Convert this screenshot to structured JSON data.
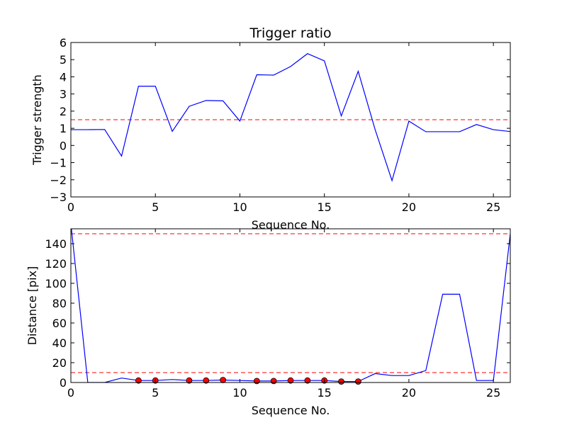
{
  "chart_data": [
    {
      "type": "line",
      "title": "Trigger ratio",
      "xlabel": "Sequence No.",
      "ylabel": "Trigger strength",
      "xlim": [
        0,
        26
      ],
      "ylim": [
        -3,
        6
      ],
      "xticks": [
        0,
        5,
        10,
        15,
        20,
        25
      ],
      "yticks": [
        -3,
        -2,
        -1,
        0,
        1,
        2,
        3,
        4,
        5,
        6
      ],
      "ytick_labels": [
        "−3",
        "−2",
        "−1",
        "0",
        "1",
        "2",
        "3",
        "4",
        "5",
        "6"
      ],
      "grid": false,
      "series": [
        {
          "color": "#0000ff",
          "x": [
            0,
            1,
            2,
            3,
            4,
            5,
            6,
            7,
            8,
            9,
            10,
            11,
            12,
            13,
            14,
            15,
            16,
            17,
            18,
            19,
            20,
            21,
            22,
            23,
            24,
            25,
            26
          ],
          "values": [
            0.92,
            0.92,
            0.93,
            -0.62,
            3.45,
            3.45,
            0.82,
            2.28,
            2.62,
            2.6,
            1.42,
            4.12,
            4.1,
            4.6,
            5.35,
            4.93,
            1.72,
            4.32,
            0.93,
            -2.05,
            1.42,
            0.8,
            0.8,
            0.8,
            1.22,
            0.92,
            0.81
          ]
        }
      ],
      "hlines": [
        {
          "y": 1.5,
          "color": "#ff0000",
          "style": "dashed"
        }
      ]
    },
    {
      "type": "line",
      "title": "",
      "xlabel": "Sequence No.",
      "ylabel": "Distance [pix]",
      "xlim": [
        0,
        26
      ],
      "ylim": [
        0,
        155
      ],
      "xticks": [
        0,
        5,
        10,
        15,
        20,
        25
      ],
      "yticks": [
        0,
        20,
        40,
        60,
        80,
        100,
        120,
        140
      ],
      "ytick_labels": [
        "0",
        "20",
        "40",
        "60",
        "80",
        "100",
        "120",
        "140"
      ],
      "grid": false,
      "series": [
        {
          "color": "#0000ff",
          "x": [
            0,
            1,
            2,
            3,
            4,
            5,
            6,
            7,
            8,
            9,
            10,
            11,
            12,
            13,
            14,
            15,
            16,
            17,
            18,
            19,
            20,
            21,
            22,
            23,
            24,
            25,
            26
          ],
          "values": [
            160,
            0,
            0,
            4.5,
            2,
            2,
            3,
            2,
            2,
            2.5,
            2,
            1.5,
            1.5,
            2,
            2,
            2,
            1,
            1,
            9,
            7,
            7,
            12,
            89,
            89,
            2,
            2,
            150
          ]
        }
      ],
      "markers": {
        "color": "#ff0000",
        "edge_color": "#000000",
        "x": [
          4,
          5,
          7,
          8,
          9,
          11,
          12,
          13,
          14,
          15,
          16,
          17
        ],
        "values": [
          2,
          2,
          2,
          2,
          2.5,
          1.5,
          1.5,
          2,
          2,
          2,
          1,
          1
        ]
      },
      "hlines": [
        {
          "y": 150,
          "color": "#ff0000",
          "style": "dashed"
        },
        {
          "y": 10,
          "color": "#ff0000",
          "style": "dashed"
        }
      ]
    }
  ]
}
